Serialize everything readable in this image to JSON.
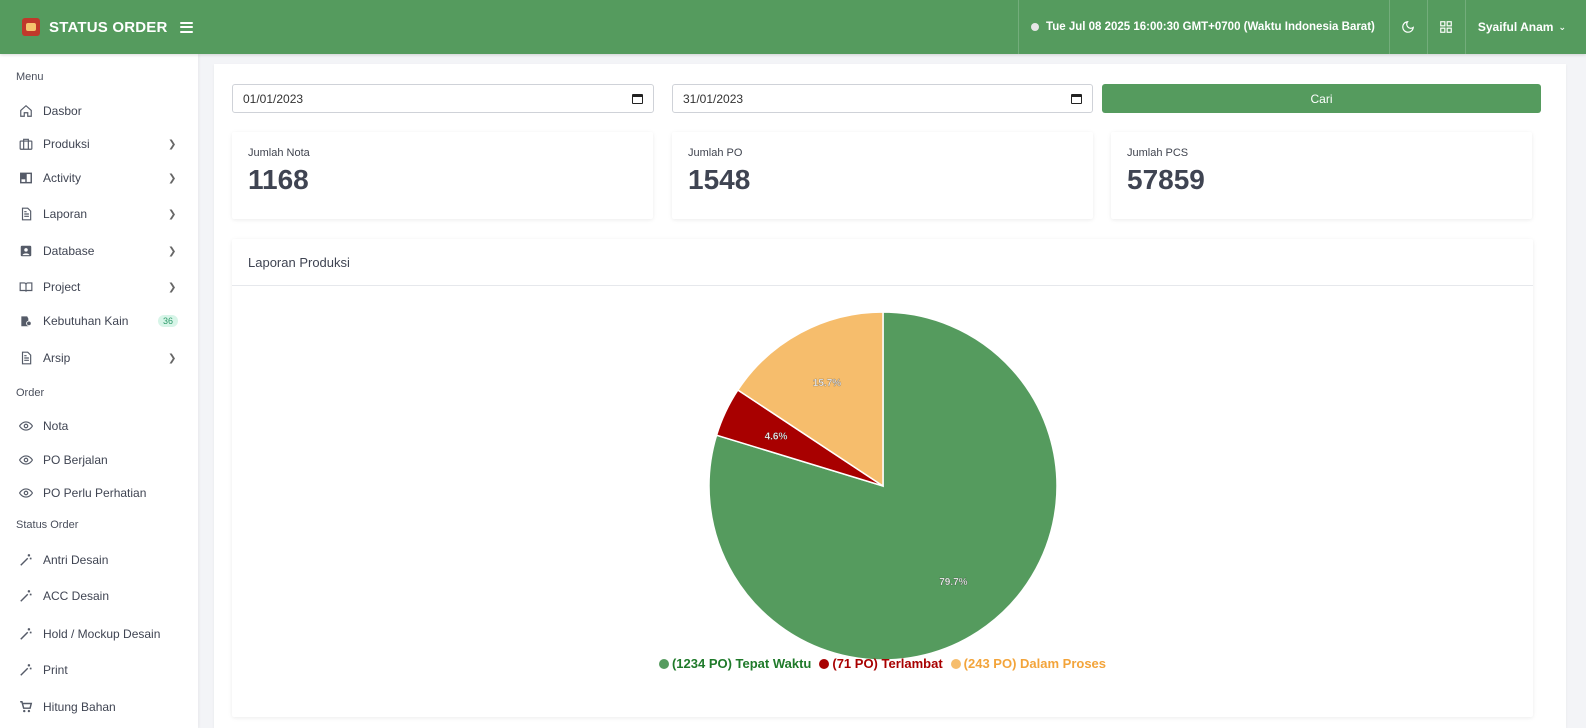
{
  "header": {
    "title": "STATUS ORDER",
    "datetime": "Tue Jul 08 2025 16:00:30 GMT+0700 (Waktu Indonesia Barat)",
    "user": "Syaiful Anam"
  },
  "sidebar": {
    "menu_label": "Menu",
    "menu": [
      {
        "label": "Dasbor",
        "icon": "home-icon"
      },
      {
        "label": "Produksi",
        "icon": "briefcase-icon"
      },
      {
        "label": "Activity",
        "icon": "book-icon"
      },
      {
        "label": "Laporan",
        "icon": "file-icon"
      },
      {
        "label": "Database",
        "icon": "contact-icon"
      },
      {
        "label": "Project",
        "icon": "book-open-icon"
      },
      {
        "label": "Kebutuhan Kain",
        "icon": "shirt-icon",
        "badge": "36"
      },
      {
        "label": "Arsip",
        "icon": "file-icon"
      }
    ],
    "order_label": "Order",
    "order": [
      {
        "label": "Nota",
        "icon": "eye-icon"
      },
      {
        "label": "PO Berjalan",
        "icon": "eye-icon"
      },
      {
        "label": "PO Perlu Perhatian",
        "icon": "eye-icon"
      }
    ],
    "status_label": "Status Order",
    "status": [
      {
        "label": "Antri Desain",
        "icon": "magic-wand-icon"
      },
      {
        "label": "ACC Desain",
        "icon": "magic-wand-icon"
      },
      {
        "label": "Hold / Mockup Desain",
        "icon": "magic-wand-icon"
      },
      {
        "label": "Print",
        "icon": "magic-wand-icon"
      },
      {
        "label": "Hitung Bahan",
        "icon": "cart-icon"
      }
    ]
  },
  "filter": {
    "start_date": "01/01/2023",
    "end_date": "31/01/2023",
    "search_label": "Cari"
  },
  "stats": [
    {
      "label": "Jumlah Nota",
      "value": "1168"
    },
    {
      "label": "Jumlah PO",
      "value": "1548"
    },
    {
      "label": "Jumlah PCS",
      "value": "57859"
    }
  ],
  "chart_card": {
    "title": "Laporan Produksi"
  },
  "chart_data": {
    "type": "pie",
    "title": "",
    "slices": [
      {
        "label": "(1234 PO) Tepat Waktu",
        "value": 1234,
        "percent_label": "79.7%",
        "color": "#559b5e",
        "text_color": "#1f7a2a"
      },
      {
        "label": "(71 PO) Terlambat",
        "value": 71,
        "percent_label": "4.6%",
        "color": "#a80000",
        "text_color": "#a80000"
      },
      {
        "label": "(243 PO) Dalam Proses",
        "value": 243,
        "percent_label": "15.7%",
        "color": "#f6bd6c",
        "text_color": "#f3a43a"
      }
    ],
    "legend_position": "bottom"
  }
}
